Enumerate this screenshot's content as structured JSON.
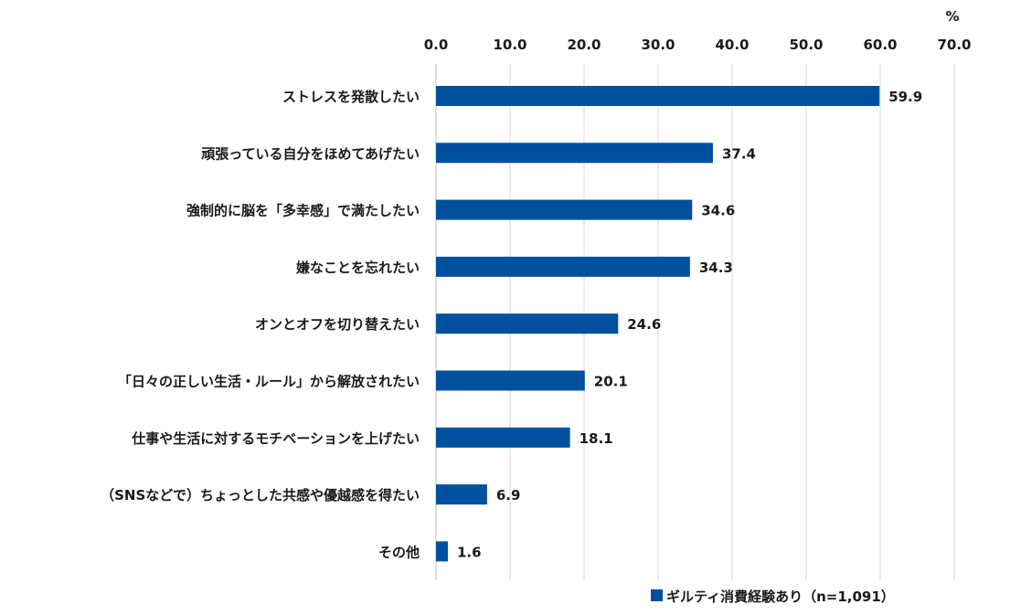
{
  "chart_data": {
    "type": "bar",
    "orientation": "horizontal",
    "unit": "%",
    "xlim": [
      0,
      70
    ],
    "ticks": [
      "0.0",
      "10.0",
      "20.0",
      "30.0",
      "40.0",
      "50.0",
      "60.0",
      "70.0"
    ],
    "grid": true,
    "categories": [
      "ストレスを発散したい",
      "頑張っている自分をほめてあげたい",
      "強制的に脳を「多幸感」で満たしたい",
      "嫌なことを忘れたい",
      "オンとオフを切り替えたい",
      "「日々の正しい生活・ルール」から解放されたい",
      "仕事や生活に対するモチベーションを上げたい",
      "（SNSなどで）ちょっとした共感や優越感を得たい",
      "その他"
    ],
    "series": [
      {
        "name": "ギルティ消費経験あり（n=1,091）",
        "values": [
          59.9,
          37.4,
          34.6,
          34.3,
          24.6,
          20.1,
          18.1,
          6.9,
          1.6
        ],
        "color": "#0050a0"
      }
    ],
    "value_labels": [
      "59.9",
      "37.4",
      "34.6",
      "34.3",
      "24.6",
      "20.1",
      "18.1",
      "6.9",
      "1.6"
    ],
    "legend_placement": "bottom-right",
    "legend_label": "■ギルティ消費経験あり（n=1,091）"
  }
}
